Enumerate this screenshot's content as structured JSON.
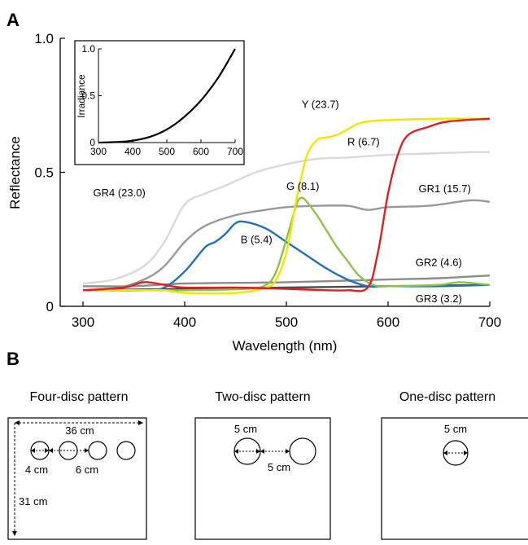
{
  "panels": {
    "a": "A",
    "b": "B"
  },
  "chart_data": {
    "type": "line",
    "title": "",
    "xlabel": "Wavelength (nm)",
    "ylabel": "Reflectance",
    "xlim": [
      300,
      700
    ],
    "ylim": [
      0,
      1.0
    ],
    "xticks": [
      300,
      400,
      500,
      600,
      700
    ],
    "yticks": [
      {
        "v": 0,
        "label": "0"
      },
      {
        "v": 0.5,
        "label": "0.5"
      },
      {
        "v": 1.0,
        "label": "1.0"
      }
    ],
    "grid": false,
    "series": [
      {
        "name": "GR4 (23.0)",
        "color": "#d9d9d9",
        "x": [
          300,
          330,
          360,
          380,
          400,
          420,
          440,
          470,
          500,
          530,
          560,
          600,
          640,
          680,
          700
        ],
        "y": [
          0.085,
          0.1,
          0.15,
          0.24,
          0.38,
          0.42,
          0.45,
          0.5,
          0.53,
          0.55,
          0.555,
          0.565,
          0.57,
          0.575,
          0.575
        ]
      },
      {
        "name": "GR1 (15.7)",
        "color": "#999999",
        "x": [
          300,
          330,
          360,
          380,
          400,
          420,
          450,
          480,
          500,
          530,
          560,
          580,
          600,
          640,
          680,
          700
        ],
        "y": [
          0.06,
          0.065,
          0.1,
          0.15,
          0.24,
          0.3,
          0.34,
          0.36,
          0.37,
          0.375,
          0.375,
          0.36,
          0.37,
          0.375,
          0.395,
          0.39
        ]
      },
      {
        "name": "GR2 (4.6)",
        "color": "#8c8c8c",
        "x": [
          300,
          350,
          400,
          500,
          600,
          650,
          700
        ],
        "y": [
          0.075,
          0.075,
          0.085,
          0.09,
          0.1,
          0.105,
          0.115
        ]
      },
      {
        "name": "GR3 (3.2)",
        "color": "#4a4a4a",
        "x": [
          300,
          400,
          500,
          600,
          700
        ],
        "y": [
          0.06,
          0.065,
          0.07,
          0.075,
          0.08
        ]
      },
      {
        "name": "B (5.4)",
        "color": "#1f6fba",
        "x": [
          300,
          360,
          380,
          400,
          420,
          430,
          440,
          450,
          460,
          480,
          500,
          520,
          540,
          560,
          580,
          600,
          650,
          700
        ],
        "y": [
          0.06,
          0.06,
          0.07,
          0.13,
          0.22,
          0.24,
          0.27,
          0.31,
          0.315,
          0.29,
          0.24,
          0.19,
          0.14,
          0.1,
          0.075,
          0.075,
          0.075,
          0.08
        ]
      },
      {
        "name": "G (8.1)",
        "color": "#8bc34a",
        "x": [
          300,
          400,
          460,
          480,
          490,
          500,
          510,
          515,
          520,
          530,
          540,
          550,
          560,
          570,
          580,
          590,
          600,
          650,
          670,
          700
        ],
        "y": [
          0.06,
          0.06,
          0.065,
          0.08,
          0.13,
          0.25,
          0.38,
          0.405,
          0.39,
          0.34,
          0.28,
          0.22,
          0.17,
          0.12,
          0.09,
          0.075,
          0.075,
          0.08,
          0.09,
          0.08
        ]
      },
      {
        "name": "Y (23.7)",
        "color": "#f2e600",
        "x": [
          300,
          340,
          360,
          380,
          400,
          450,
          480,
          490,
          500,
          510,
          520,
          530,
          540,
          550,
          560,
          570,
          580,
          600,
          650,
          700
        ],
        "y": [
          0.06,
          0.06,
          0.06,
          0.06,
          0.05,
          0.05,
          0.07,
          0.1,
          0.2,
          0.4,
          0.56,
          0.62,
          0.63,
          0.64,
          0.66,
          0.68,
          0.69,
          0.695,
          0.7,
          0.7
        ]
      },
      {
        "name": "R (6.7)",
        "color": "#e02020",
        "x": [
          300,
          340,
          360,
          380,
          400,
          450,
          500,
          540,
          560,
          580,
          590,
          600,
          610,
          620,
          640,
          660,
          700
        ],
        "y": [
          0.06,
          0.07,
          0.09,
          0.08,
          0.07,
          0.07,
          0.065,
          0.06,
          0.06,
          0.07,
          0.2,
          0.42,
          0.57,
          0.64,
          0.67,
          0.69,
          0.7
        ]
      }
    ],
    "labels": [
      {
        "text": "Y (23.7)",
        "x": 515,
        "y": 0.74
      },
      {
        "text": "R (6.7)",
        "x": 560,
        "y": 0.6
      },
      {
        "text": "G (8.1)",
        "x": 500,
        "y": 0.435
      },
      {
        "text": "GR1 (15.7)",
        "x": 630,
        "y": 0.425
      },
      {
        "text": "GR4 (23.0)",
        "x": 310,
        "y": 0.41
      },
      {
        "text": "B (5.4)",
        "x": 455,
        "y": 0.235
      },
      {
        "text": "GR2 (4.6)",
        "x": 627,
        "y": 0.15
      },
      {
        "text": "GR3 (3.2)",
        "x": 627,
        "y": 0.015
      }
    ],
    "inset": {
      "type": "line",
      "ylabel": "Irradiance",
      "xlim": [
        300,
        700
      ],
      "ylim": [
        0,
        1.0
      ],
      "xticks": [
        300,
        400,
        500,
        600,
        700
      ],
      "yticks": [
        {
          "v": 0,
          "label": "0"
        },
        {
          "v": 0.5,
          "label": "0.5"
        },
        {
          "v": 1.0,
          "label": "1.0"
        }
      ],
      "x": [
        300,
        350,
        400,
        450,
        500,
        550,
        600,
        650,
        700
      ],
      "y": [
        0.0,
        0.005,
        0.02,
        0.06,
        0.14,
        0.27,
        0.45,
        0.69,
        1.0
      ]
    }
  },
  "patterns": [
    {
      "title": "Four-disc pattern",
      "labels": {
        "width": "36 cm",
        "height": "31 cm",
        "diameter": "4 cm",
        "gap": "6 cm"
      }
    },
    {
      "title": "Two-disc pattern",
      "labels": {
        "diameter": "5 cm",
        "gap": "5 cm"
      }
    },
    {
      "title": "One-disc pattern",
      "labels": {
        "diameter": "5 cm"
      }
    }
  ]
}
